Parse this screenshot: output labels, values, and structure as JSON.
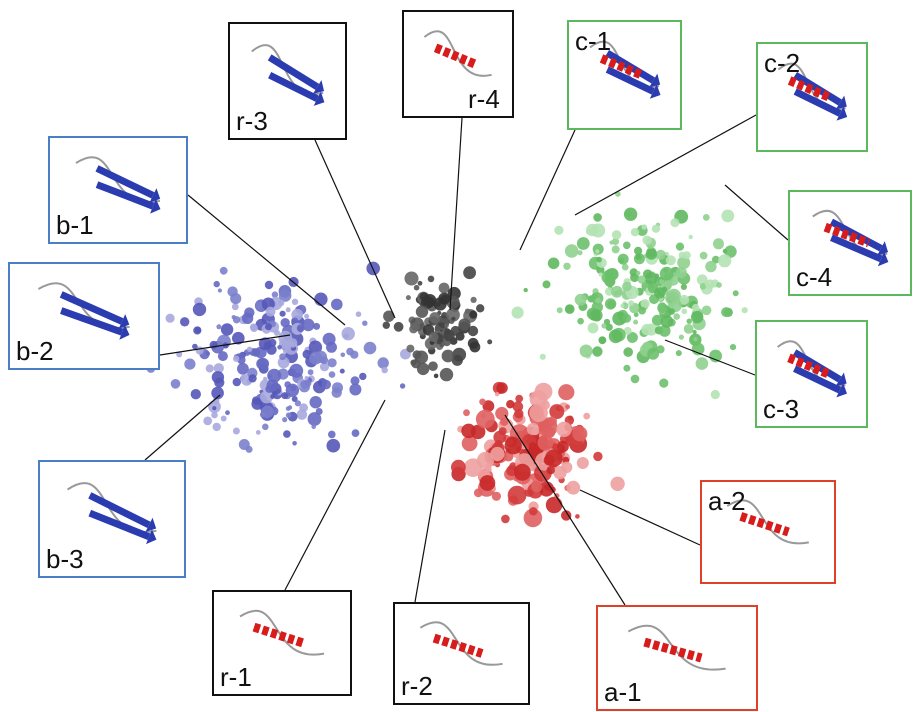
{
  "panels": [
    {
      "label": "r-3"
    },
    {
      "label": "r-4"
    },
    {
      "label": "c-1"
    },
    {
      "label": "c-2"
    },
    {
      "label": "b-1"
    },
    {
      "label": "c-4"
    },
    {
      "label": "b-2"
    },
    {
      "label": "c-3"
    },
    {
      "label": "b-3"
    },
    {
      "label": "a-2"
    },
    {
      "label": "r-1"
    },
    {
      "label": "r-2"
    },
    {
      "label": "a-1"
    }
  ]
}
